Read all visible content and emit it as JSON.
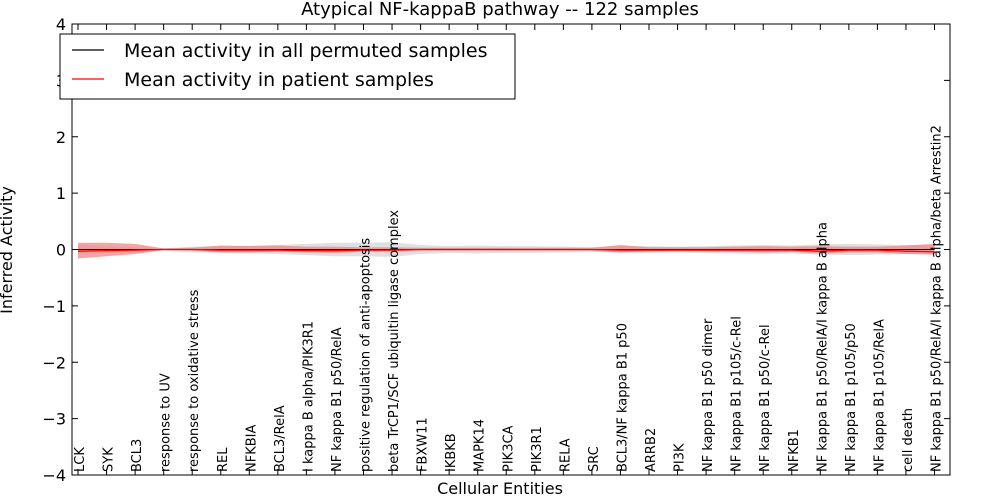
{
  "chart_data": {
    "type": "line",
    "title": "Atypical NF-kappaB pathway -- 122 samples",
    "xlabel": "Cellular Entities",
    "ylabel": "Inferred Activity",
    "ylim": [
      -4,
      4
    ],
    "yticks": [
      -4,
      -3,
      -2,
      -1,
      0,
      1,
      2,
      3,
      4
    ],
    "ytick_labels": [
      "−4",
      "−3",
      "−2",
      "−1",
      "0",
      "1",
      "2",
      "3",
      "4"
    ],
    "grid": false,
    "legend_position": "top-left",
    "categories": [
      "LCK",
      "SYK",
      "BCL3",
      "response to UV",
      "response to oxidative stress",
      "REL",
      "NFKBIA",
      "BCL3/RelA",
      "I kappa B alpha/PIK3R1",
      "NF kappa B1 p50/RelA",
      "positive regulation of anti-apoptosis",
      "beta TrCP1/SCF ubiquitin ligase complex",
      "FBXW11",
      "IKBKB",
      "MAPK14",
      "PIK3CA",
      "PIK3R1",
      "RELA",
      "SRC",
      "BCL3/NF kappa B1 p50",
      "ARRB2",
      "PI3K",
      "NF kappa B1 p50 dimer",
      "NF kappa B1 p105/c-Rel",
      "NF kappa B1 p50/c-Rel",
      "NFKB1",
      "NF kappa B1 p50/RelA/I kappa B alpha",
      "NF kappa B1 p105/p50",
      "NF kappa B1 p105/RelA",
      "cell death",
      "NF kappa B1 p50/RelA/I kappa B alpha/beta Arrestin2"
    ],
    "series": [
      {
        "name": "Mean activity in all permuted samples",
        "color": "#000000",
        "values": [
          0,
          0,
          0,
          0,
          0,
          0,
          0,
          0,
          0,
          0,
          0,
          0,
          0,
          0,
          0,
          0,
          0,
          0,
          0,
          0,
          0,
          0,
          0,
          0,
          0,
          0,
          0,
          0,
          0,
          0,
          0
        ],
        "band_low": [
          -0.08,
          -0.06,
          -0.04,
          -0.02,
          -0.05,
          -0.06,
          -0.07,
          -0.08,
          -0.1,
          -0.12,
          -0.12,
          -0.13,
          -0.08,
          -0.06,
          -0.07,
          -0.06,
          -0.06,
          -0.05,
          -0.04,
          -0.06,
          -0.06,
          -0.05,
          -0.06,
          -0.07,
          -0.08,
          -0.07,
          -0.09,
          -0.1,
          -0.09,
          -0.08,
          -0.08
        ],
        "band_high": [
          0.08,
          0.06,
          0.04,
          0.02,
          0.05,
          0.06,
          0.07,
          0.08,
          0.1,
          0.12,
          0.12,
          0.13,
          0.08,
          0.06,
          0.07,
          0.06,
          0.06,
          0.05,
          0.04,
          0.06,
          0.06,
          0.05,
          0.06,
          0.07,
          0.08,
          0.07,
          0.09,
          0.1,
          0.09,
          0.08,
          0.08
        ]
      },
      {
        "name": "Mean activity in patient samples",
        "color": "#ff0000",
        "values": [
          -0.03,
          -0.02,
          -0.01,
          0,
          0,
          -0.01,
          -0.01,
          -0.01,
          -0.02,
          -0.02,
          -0.01,
          -0.01,
          0,
          0,
          0,
          0,
          0,
          0,
          0,
          -0.01,
          -0.01,
          -0.01,
          -0.01,
          -0.01,
          -0.01,
          -0.01,
          -0.03,
          -0.01,
          -0.01,
          -0.03,
          -0.04
        ],
        "band_low": [
          -0.16,
          -0.12,
          -0.08,
          -0.01,
          -0.02,
          -0.05,
          -0.05,
          -0.04,
          -0.05,
          -0.06,
          -0.04,
          -0.03,
          -0.02,
          -0.02,
          -0.02,
          -0.02,
          -0.02,
          -0.02,
          -0.02,
          -0.05,
          -0.03,
          -0.02,
          -0.03,
          -0.04,
          -0.05,
          -0.04,
          -0.07,
          -0.05,
          -0.05,
          -0.08,
          -0.09
        ],
        "band_high": [
          0.12,
          0.12,
          0.1,
          0.02,
          0.03,
          0.07,
          0.06,
          0.07,
          0.05,
          0.05,
          0.04,
          0.04,
          0.03,
          0.03,
          0.03,
          0.03,
          0.03,
          0.03,
          0.03,
          0.08,
          0.04,
          0.04,
          0.04,
          0.05,
          0.06,
          0.05,
          0.06,
          0.05,
          0.05,
          0.07,
          0.1
        ]
      }
    ]
  }
}
